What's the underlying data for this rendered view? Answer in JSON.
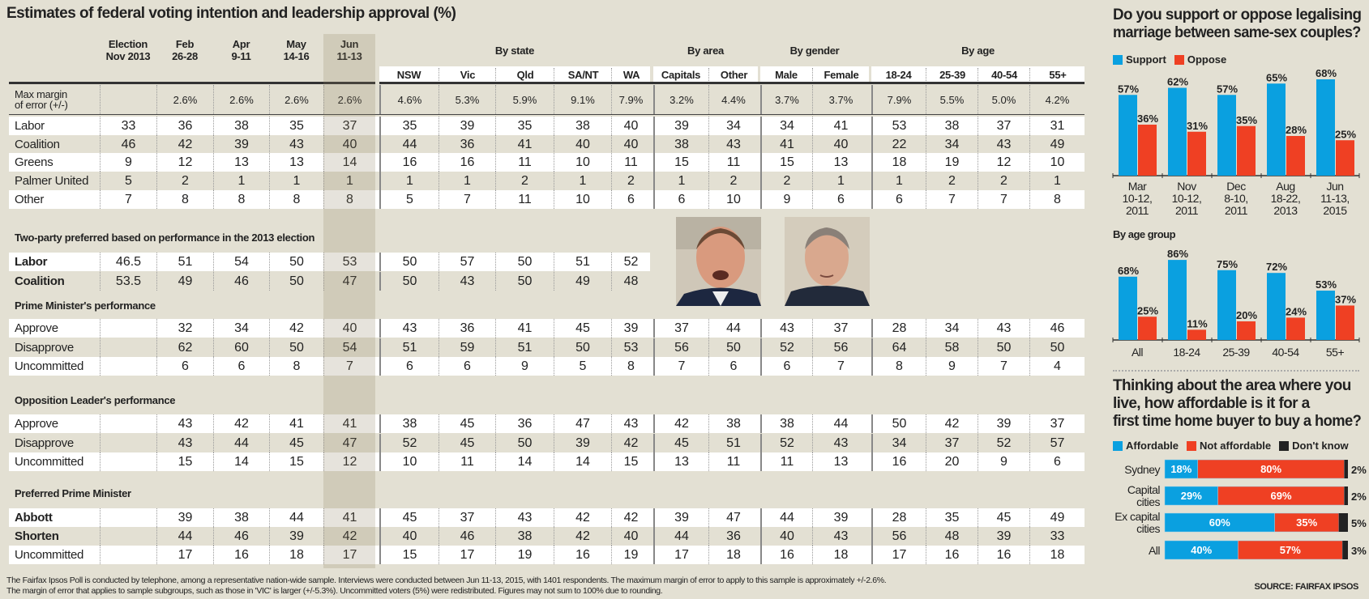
{
  "title": "Estimates of federal voting intention and leadership approval (%)",
  "colors": {
    "support": "#0aa0e0",
    "oppose": "#ef4023",
    "dont_know": "#222222",
    "background": "#e3e0d3"
  },
  "table": {
    "time_columns": [
      [
        "Election",
        "Nov 2013"
      ],
      [
        "Feb",
        "26-28"
      ],
      [
        "Apr",
        "9-11"
      ],
      [
        "May",
        "14-16"
      ],
      [
        "Jun",
        "11-13"
      ]
    ],
    "groups": [
      {
        "title": "By state",
        "columns": [
          "NSW",
          "Vic",
          "Qld",
          "SA/NT",
          "WA"
        ]
      },
      {
        "title": "By area",
        "columns": [
          "Capitals",
          "Other"
        ]
      },
      {
        "title": "By gender",
        "columns": [
          "Male",
          "Female"
        ]
      },
      {
        "title": "By age",
        "columns": [
          "18-24",
          "25-39",
          "40-54",
          "55+"
        ]
      }
    ],
    "margin_row": {
      "label": [
        "Max margin",
        "of error (+/-)"
      ],
      "values": [
        "",
        "2.6%",
        "2.6%",
        "2.6%",
        "2.6%",
        "4.6%",
        "5.3%",
        "5.9%",
        "9.1%",
        "7.9%",
        "3.2%",
        "4.4%",
        "3.7%",
        "3.7%",
        "7.9%",
        "5.5%",
        "5.0%",
        "4.2%"
      ]
    },
    "sections": [
      {
        "heading": "",
        "rows": [
          {
            "label": "Labor",
            "values": [
              "33",
              "36",
              "38",
              "35",
              "37",
              "35",
              "39",
              "35",
              "38",
              "40",
              "39",
              "34",
              "34",
              "41",
              "53",
              "38",
              "37",
              "31"
            ]
          },
          {
            "label": "Coalition",
            "values": [
              "46",
              "42",
              "39",
              "43",
              "40",
              "44",
              "36",
              "41",
              "40",
              "40",
              "38",
              "43",
              "41",
              "40",
              "22",
              "34",
              "43",
              "49"
            ]
          },
          {
            "label": "Greens",
            "values": [
              "9",
              "12",
              "13",
              "13",
              "14",
              "16",
              "16",
              "11",
              "10",
              "11",
              "15",
              "11",
              "15",
              "13",
              "18",
              "19",
              "12",
              "10"
            ]
          },
          {
            "label": "Palmer United",
            "values": [
              "5",
              "2",
              "1",
              "1",
              "1",
              "1",
              "1",
              "2",
              "1",
              "2",
              "1",
              "2",
              "2",
              "1",
              "1",
              "2",
              "2",
              "1"
            ]
          },
          {
            "label": "Other",
            "values": [
              "7",
              "8",
              "8",
              "8",
              "8",
              "5",
              "7",
              "11",
              "10",
              "6",
              "6",
              "10",
              "9",
              "6",
              "6",
              "7",
              "7",
              "8"
            ]
          }
        ]
      },
      {
        "heading": "Two-party preferred based on performance in the 2013 election",
        "bold": true,
        "rows": [
          {
            "label": "Labor",
            "values": [
              "46.5",
              "51",
              "54",
              "50",
              "53",
              "50",
              "57",
              "50",
              "51",
              "52"
            ]
          },
          {
            "label": "Coalition",
            "values": [
              "53.5",
              "49",
              "46",
              "50",
              "47",
              "50",
              "43",
              "50",
              "49",
              "48"
            ]
          }
        ]
      },
      {
        "heading": "Prime Minister's performance",
        "rows": [
          {
            "label": "Approve",
            "values": [
              "",
              "32",
              "34",
              "42",
              "40",
              "43",
              "36",
              "41",
              "45",
              "39",
              "37",
              "44",
              "43",
              "37",
              "28",
              "34",
              "43",
              "46"
            ]
          },
          {
            "label": "Disapprove",
            "values": [
              "",
              "62",
              "60",
              "50",
              "54",
              "51",
              "59",
              "51",
              "50",
              "53",
              "56",
              "50",
              "52",
              "56",
              "64",
              "58",
              "50",
              "50"
            ]
          },
          {
            "label": "Uncommitted",
            "values": [
              "",
              "6",
              "6",
              "8",
              "7",
              "6",
              "6",
              "9",
              "5",
              "8",
              "7",
              "6",
              "6",
              "7",
              "8",
              "9",
              "7",
              "4"
            ]
          }
        ]
      },
      {
        "heading": "Opposition Leader's performance",
        "rows": [
          {
            "label": "Approve",
            "values": [
              "",
              "43",
              "42",
              "41",
              "41",
              "38",
              "45",
              "36",
              "47",
              "43",
              "42",
              "38",
              "38",
              "44",
              "50",
              "42",
              "39",
              "37"
            ]
          },
          {
            "label": "Disapprove",
            "values": [
              "",
              "43",
              "44",
              "45",
              "47",
              "52",
              "45",
              "50",
              "39",
              "42",
              "45",
              "51",
              "52",
              "43",
              "34",
              "37",
              "52",
              "57"
            ]
          },
          {
            "label": "Uncommitted",
            "values": [
              "",
              "15",
              "14",
              "15",
              "12",
              "10",
              "11",
              "14",
              "14",
              "15",
              "13",
              "11",
              "11",
              "13",
              "16",
              "20",
              "9",
              "6"
            ]
          }
        ]
      },
      {
        "heading": "Preferred Prime Minister",
        "bold": true,
        "rows": [
          {
            "label": "Abbott",
            "values": [
              "",
              "39",
              "38",
              "44",
              "41",
              "45",
              "37",
              "43",
              "42",
              "42",
              "39",
              "47",
              "44",
              "39",
              "28",
              "35",
              "45",
              "49"
            ]
          },
          {
            "label": "Shorten",
            "values": [
              "",
              "44",
              "46",
              "39",
              "42",
              "40",
              "46",
              "38",
              "42",
              "40",
              "44",
              "36",
              "40",
              "43",
              "56",
              "48",
              "39",
              "33"
            ]
          },
          {
            "label": "Uncommitted",
            "values": [
              "",
              "17",
              "16",
              "18",
              "17",
              "15",
              "17",
              "19",
              "16",
              "19",
              "17",
              "18",
              "16",
              "18",
              "17",
              "16",
              "16",
              "18"
            ]
          }
        ]
      }
    ]
  },
  "footnote": [
    "The Fairfax Ipsos Poll is conducted by telephone, among a representative nation-wide sample. Interviews were conducted between Jun 11-13, 2015, with 1401 respondents.  The maximum margin of error to apply to this sample is approximately +/-2.6%.",
    "The margin of error that applies to sample subgroups, such as those in 'VIC' is larger (+/-5.3%).  Uncommitted voters (5%) were redistributed.  Figures may not sum to 100% due to rounding."
  ],
  "source": "SOURCE: FAIRFAX IPSOS",
  "chart_data": [
    {
      "type": "bar",
      "title": "Do you support or oppose legalising marriage between same-sex couples?",
      "categories": [
        [
          "Mar",
          "10-12,",
          "2011"
        ],
        [
          "Nov",
          "10-12,",
          "2011"
        ],
        [
          "Dec",
          "8-10,",
          "2011"
        ],
        [
          "Aug",
          "18-22,",
          "2013"
        ],
        [
          "Jun",
          "11-13,",
          "2015"
        ]
      ],
      "series": [
        {
          "name": "Support",
          "values": [
            57,
            62,
            57,
            65,
            68
          ]
        },
        {
          "name": "Oppose",
          "values": [
            36,
            31,
            35,
            28,
            25
          ]
        }
      ],
      "value_suffix": "%",
      "legend": "top-left",
      "grid": false
    },
    {
      "type": "bar",
      "title": "By age group",
      "categories": [
        [
          "All"
        ],
        [
          "18-24"
        ],
        [
          "25-39"
        ],
        [
          "40-54"
        ],
        [
          "55+"
        ]
      ],
      "series": [
        {
          "name": "Support",
          "values": [
            68,
            86,
            75,
            72,
            53
          ]
        },
        {
          "name": "Oppose",
          "values": [
            25,
            11,
            20,
            24,
            37
          ]
        }
      ],
      "value_suffix": "%",
      "grid": false
    },
    {
      "type": "bar",
      "orientation": "horizontal-stacked",
      "title": "Thinking about the area where you live, how affordable is it for a first time home buyer to buy a home?",
      "title_lines": [
        "Thinking about the area where you",
        "live, how affordable is it for a",
        "first time home buyer to buy a home?"
      ],
      "categories": [
        [
          "Sydney"
        ],
        [
          "Capital",
          "cities"
        ],
        [
          "Ex capital",
          "cities"
        ],
        [
          "All"
        ]
      ],
      "series": [
        {
          "name": "Affordable",
          "values": [
            18,
            29,
            60,
            40
          ]
        },
        {
          "name": "Not affordable",
          "values": [
            80,
            69,
            35,
            57
          ]
        },
        {
          "name": "Don't know",
          "values": [
            2,
            2,
            5,
            3
          ]
        }
      ],
      "value_suffix": "%",
      "legend": "top-left",
      "xlim": [
        0,
        100
      ]
    }
  ],
  "q1_lines": [
    "Do you support or oppose legalising",
    "marriage between same-sex couples?"
  ]
}
